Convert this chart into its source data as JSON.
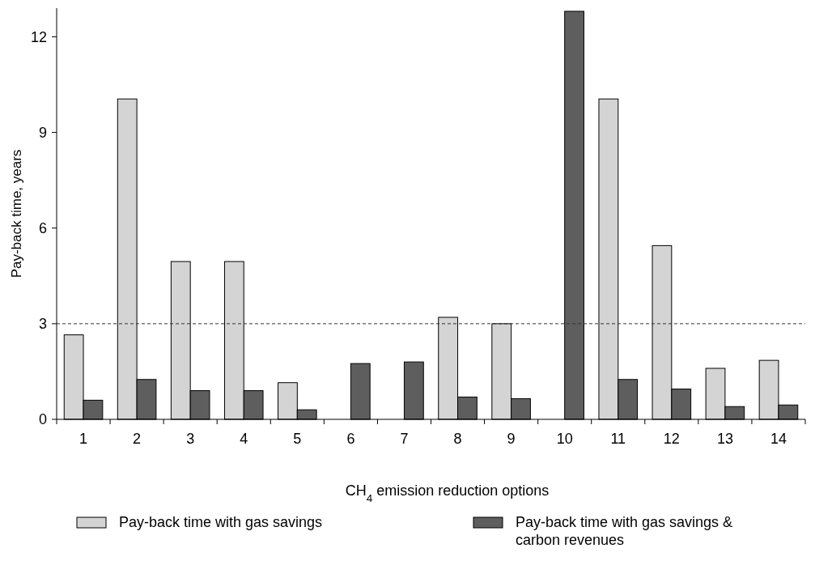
{
  "chart_data": {
    "type": "bar",
    "xlabel": "CH$_{4}$ emission reduction options",
    "ylabel": "Pay-back time, years",
    "categories": [
      "1",
      "2",
      "3",
      "4",
      "5",
      "6",
      "7",
      "8",
      "9",
      "10",
      "11",
      "12",
      "13",
      "14"
    ],
    "series": [
      {
        "name": "Pay-back time with gas savings",
        "color": "#d4d4d4",
        "values": [
          2.65,
          10.05,
          4.95,
          4.95,
          1.15,
          null,
          null,
          3.2,
          3.0,
          null,
          10.05,
          5.45,
          1.6,
          1.85
        ]
      },
      {
        "name": "Pay-back time with gas savings & carbon revenues",
        "color": "#5e5e5e",
        "values": [
          0.6,
          1.25,
          0.9,
          0.9,
          0.3,
          1.75,
          1.8,
          0.7,
          0.65,
          12.8,
          1.25,
          0.95,
          0.4,
          0.45
        ]
      }
    ],
    "ylim": [
      0,
      12.9
    ],
    "yticks": [
      0,
      3,
      6,
      9,
      12
    ],
    "ref_lines": [
      {
        "axis": "y",
        "value": 3,
        "line_style": "dashed",
        "color": "#333333"
      }
    ],
    "legend": "bottom"
  }
}
